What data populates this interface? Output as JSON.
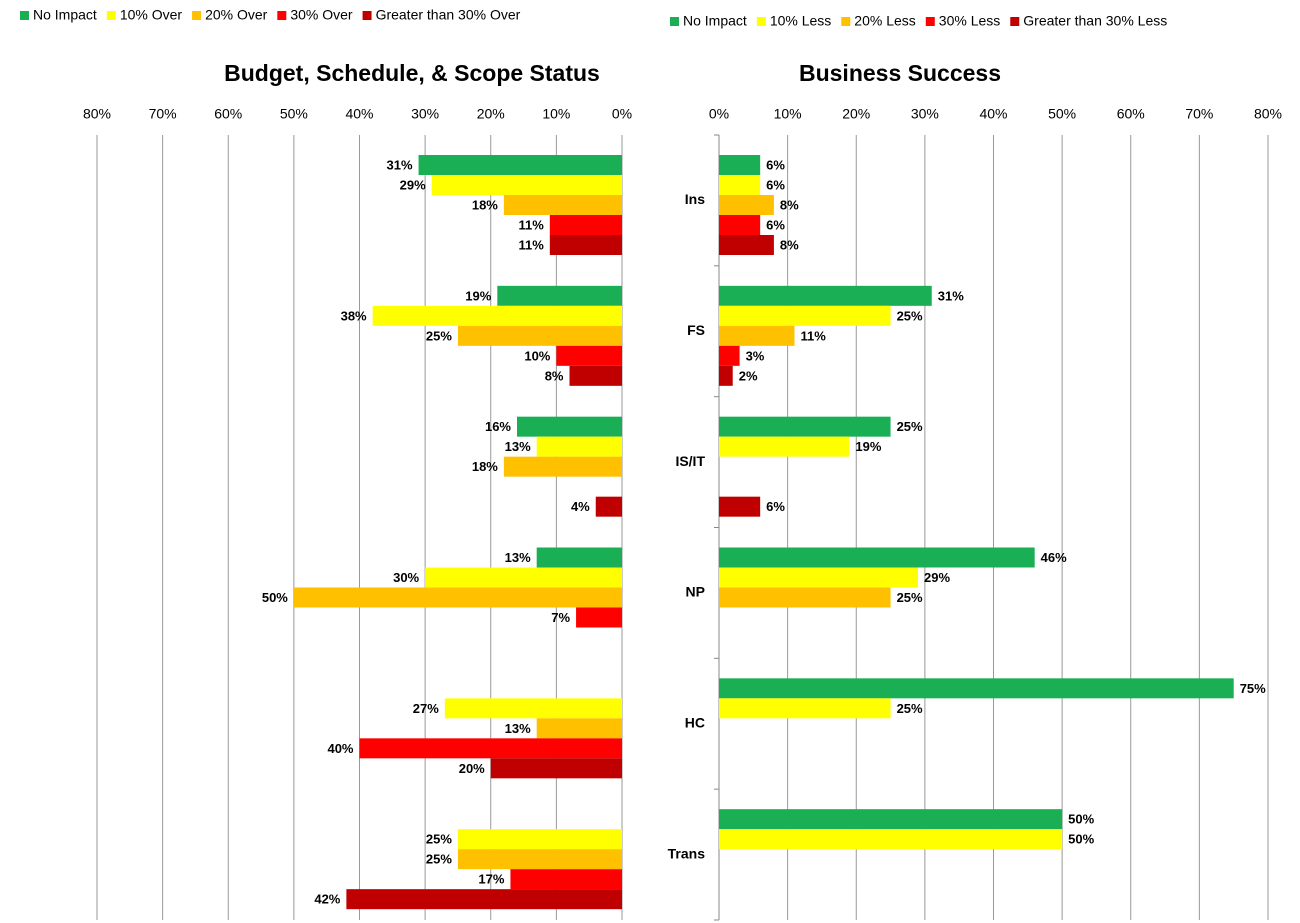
{
  "chart_data": [
    {
      "type": "bar",
      "orientation": "horizontal",
      "title": "Budget, Schedule, & Scope Status",
      "xlim": [
        80,
        0
      ],
      "xticks": [
        {
          "value": 80,
          "label": "80%"
        },
        {
          "value": 70,
          "label": "70%"
        },
        {
          "value": 60,
          "label": "60%"
        },
        {
          "value": 50,
          "label": "50%"
        },
        {
          "value": 40,
          "label": "40%"
        },
        {
          "value": 30,
          "label": "30%"
        },
        {
          "value": 20,
          "label": "20%"
        },
        {
          "value": 10,
          "label": "10%"
        },
        {
          "value": 0,
          "label": "0%"
        }
      ],
      "grid": true,
      "legend": "top-left",
      "series": [
        {
          "name": "No Impact",
          "color": "#1aaf54",
          "values": [
            31,
            19,
            16,
            13,
            null,
            null
          ],
          "value_labels": [
            "31%",
            "19%",
            "16%",
            "13%",
            null,
            null
          ]
        },
        {
          "name": "10% Over",
          "color": "#ffff00",
          "values": [
            29,
            38,
            13,
            30,
            27,
            25
          ],
          "value_labels": [
            "29%",
            "38%",
            "13%",
            "30%",
            "27%",
            "25%"
          ]
        },
        {
          "name": "20% Over",
          "color": "#ffc000",
          "values": [
            18,
            25,
            18,
            50,
            13,
            25
          ],
          "value_labels": [
            "18%",
            "25%",
            "18%",
            "50%",
            "13%",
            "25%"
          ]
        },
        {
          "name": "30% Over",
          "color": "#ff0000",
          "values": [
            11,
            10,
            null,
            7,
            40,
            17
          ],
          "value_labels": [
            "11%",
            "10%",
            null,
            "7%",
            "40%",
            "17%"
          ]
        },
        {
          "name": "Greater than 30% Over",
          "color": "#c00000",
          "values": [
            11,
            8,
            4,
            null,
            20,
            42
          ],
          "value_labels": [
            "11%",
            "8%",
            "4%",
            null,
            "20%",
            "42%"
          ]
        }
      ]
    },
    {
      "type": "bar",
      "orientation": "horizontal",
      "title": "Business Success",
      "categories": [
        "Ins",
        "FS",
        "IS/IT",
        "NP",
        "HC",
        "Trans"
      ],
      "xlim": [
        0,
        80
      ],
      "xticks": [
        {
          "value": 0,
          "label": "0%"
        },
        {
          "value": 10,
          "label": "10%"
        },
        {
          "value": 20,
          "label": "20%"
        },
        {
          "value": 30,
          "label": "30%"
        },
        {
          "value": 40,
          "label": "40%"
        },
        {
          "value": 50,
          "label": "50%"
        },
        {
          "value": 60,
          "label": "60%"
        },
        {
          "value": 70,
          "label": "70%"
        },
        {
          "value": 80,
          "label": "80%"
        }
      ],
      "grid": true,
      "legend": "top-right",
      "series": [
        {
          "name": "No Impact",
          "color": "#1aaf54",
          "values": [
            6,
            31,
            25,
            46,
            75,
            50
          ],
          "value_labels": [
            "6%",
            "31%",
            "25%",
            "46%",
            "75%",
            "50%"
          ]
        },
        {
          "name": "10% Less",
          "color": "#ffff00",
          "values": [
            6,
            25,
            19,
            29,
            25,
            50
          ],
          "value_labels": [
            "6%",
            "25%",
            "19%",
            "29%",
            "25%",
            "50%"
          ]
        },
        {
          "name": "20% Less",
          "color": "#ffc000",
          "values": [
            8,
            11,
            null,
            25,
            null,
            null
          ],
          "value_labels": [
            "8%",
            "11%",
            null,
            "25%",
            null,
            null
          ]
        },
        {
          "name": "30% Less",
          "color": "#ff0000",
          "values": [
            6,
            3,
            null,
            null,
            null,
            null
          ],
          "value_labels": [
            "6%",
            "3%",
            null,
            null,
            null,
            null
          ]
        },
        {
          "name": "Greater than 30% Less",
          "color": "#c00000",
          "values": [
            8,
            2,
            6,
            null,
            null,
            null
          ],
          "value_labels": [
            "8%",
            "2%",
            "6%",
            null,
            null,
            null
          ]
        }
      ]
    }
  ]
}
